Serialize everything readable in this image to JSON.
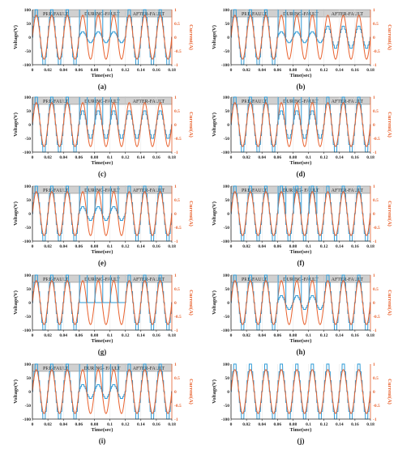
{
  "figure": {
    "colors": {
      "voltage": "#2E9AD6",
      "current": "#E8602C",
      "band_fill": "#D0D0D0",
      "axis": "#222222"
    },
    "panel_order": [
      "(a)",
      "(b)",
      "(c)",
      "(d)",
      "(e)",
      "(f)",
      "(g)",
      "(h)",
      "(i)",
      "(j)"
    ]
  },
  "chart_data": [
    {
      "id": "a",
      "panel_label": "(a)",
      "type": "line",
      "bands": [
        "PRE-FAULT",
        "DURING-FAULT",
        "AFTER-FAULT"
      ],
      "xlabel": "Time(sec)",
      "ylabel_left": "Voltage(V)",
      "ylabel_right": "Current(A)",
      "xlim": [
        0,
        0.18
      ],
      "ylim_left": [
        -100,
        100
      ],
      "ylim_right": [
        -1,
        1
      ],
      "x_ticks": [
        "0",
        "0.02",
        "0.04",
        "0.06",
        "0.08",
        "0.1",
        "0.12",
        "0.14",
        "0.16",
        "0.18"
      ],
      "y_ticks_left": [
        "100",
        "50",
        "0",
        "-50",
        "-100"
      ],
      "y_ticks_right": [
        "1",
        "0.5",
        "0",
        "-0.5",
        "-1"
      ],
      "fault_window": [
        0.06,
        0.12
      ],
      "series": [
        {
          "name": "Voltage(V)",
          "axis": "left",
          "frequency_hz": 50,
          "amplitude": 100,
          "fault_amplitude": 20,
          "waveform": "staircase"
        },
        {
          "name": "Current(A)",
          "axis": "right",
          "frequency_hz": 50,
          "amplitude": 0.8,
          "fault_amplitude": 0.8,
          "waveform": "sine"
        }
      ]
    },
    {
      "id": "b",
      "panel_label": "(b)",
      "type": "line",
      "bands": [
        "PRE-FAULT",
        "DURING-FAULT",
        "AFTER-FAULT"
      ],
      "xlabel": "Time(sec)",
      "ylabel_left": "Voltage(V)",
      "ylabel_right": "Current(A)",
      "xlim": [
        0,
        0.18
      ],
      "ylim_left": [
        -100,
        100
      ],
      "ylim_right": [
        -1,
        1
      ],
      "x_ticks": [
        "0",
        "0.02",
        "0.04",
        "0.06",
        "0.08",
        "0.1",
        "0.12",
        "0.14",
        "0.16",
        "0.18"
      ],
      "y_ticks_left": [
        "100",
        "50",
        "0",
        "-50",
        "-100"
      ],
      "y_ticks_right": [
        "1",
        "0.5",
        "0",
        "-0.5",
        "-1"
      ],
      "fault_window": [
        0.06,
        0.12
      ],
      "series": [
        {
          "name": "Voltage(V)",
          "axis": "left",
          "frequency_hz": 50,
          "amplitude": 100,
          "fault_amplitude": 20,
          "after_amplitude": 40,
          "waveform": "staircase"
        },
        {
          "name": "Current(A)",
          "axis": "right",
          "frequency_hz": 50,
          "amplitude": 0.8,
          "fault_amplitude": 0.8,
          "waveform": "sine"
        }
      ]
    },
    {
      "id": "c",
      "panel_label": "(c)",
      "type": "line",
      "bands": [
        "PRE-FAULT",
        "DURING-FAULT",
        "AFTER-FAULT"
      ],
      "xlabel": "Time(sec)",
      "ylabel_left": "Voltage(V)",
      "ylabel_right": "Current(A)",
      "xlim": [
        0,
        0.18
      ],
      "ylim_left": [
        -100,
        100
      ],
      "ylim_right": [
        -1,
        1
      ],
      "x_ticks": [
        "0",
        "0.02",
        "0.04",
        "0.06",
        "0.08",
        "0.1",
        "0.12",
        "0.14",
        "0.16",
        "0.18"
      ],
      "y_ticks_left": [
        "100",
        "50",
        "0",
        "-50",
        "-100"
      ],
      "y_ticks_right": [
        "1",
        "0.5",
        "0",
        "-0.5",
        "-1"
      ],
      "fault_window": [
        0.06,
        0.12
      ],
      "series": [
        {
          "name": "Voltage(V)",
          "axis": "left",
          "frequency_hz": 50,
          "amplitude": 100,
          "fault_amplitude": 50,
          "after_amplitude": 50,
          "waveform": "staircase"
        },
        {
          "name": "Current(A)",
          "axis": "right",
          "frequency_hz": 50,
          "amplitude": 0.8,
          "fault_amplitude": 0.8,
          "waveform": "sine"
        }
      ]
    },
    {
      "id": "d",
      "panel_label": "(d)",
      "type": "line",
      "bands": [
        "PRE-FAULT",
        "DURING-FAULT",
        "AFTER-FAULT"
      ],
      "xlabel": "Time(sec)",
      "ylabel_left": "Voltage(V)",
      "ylabel_right": "Current(A)",
      "xlim": [
        0,
        0.18
      ],
      "ylim_left": [
        -100,
        100
      ],
      "ylim_right": [
        -1,
        1
      ],
      "x_ticks": [
        "0",
        "0.02",
        "0.04",
        "0.06",
        "0.08",
        "0.1",
        "0.12",
        "0.14",
        "0.16",
        "0.18"
      ],
      "y_ticks_left": [
        "100",
        "50",
        "0",
        "-50",
        "-100"
      ],
      "y_ticks_right": [
        "1",
        "0.5",
        "0",
        "-0.5",
        "-1"
      ],
      "fault_window": [
        0.06,
        0.12
      ],
      "series": [
        {
          "name": "Voltage(V)",
          "axis": "left",
          "frequency_hz": 50,
          "amplitude": 100,
          "fault_amplitude": 50,
          "waveform": "staircase"
        },
        {
          "name": "Current(A)",
          "axis": "right",
          "frequency_hz": 50,
          "amplitude": 0.8,
          "fault_amplitude": 0.8,
          "waveform": "sine"
        }
      ]
    },
    {
      "id": "e",
      "panel_label": "(e)",
      "type": "line",
      "bands": [
        "PRE-FAULT",
        "DURING-FAULT",
        "AFTER-FAULT"
      ],
      "xlabel": "Time(sec)",
      "ylabel_left": "Voltage(V)",
      "ylabel_right": "Current(A)",
      "xlim": [
        0,
        0.18
      ],
      "ylim_left": [
        -100,
        100
      ],
      "ylim_right": [
        -1,
        1
      ],
      "x_ticks": [
        "0",
        "0.02",
        "0.04",
        "0.06",
        "0.08",
        "0.1",
        "0.12",
        "0.14",
        "0.16",
        "0.18"
      ],
      "y_ticks_left": [
        "100",
        "50",
        "0",
        "-50",
        "-100"
      ],
      "y_ticks_right": [
        "1",
        "0.5",
        "0",
        "-0.5",
        "-1"
      ],
      "fault_window": [
        0.06,
        0.12
      ],
      "series": [
        {
          "name": "Voltage(V)",
          "axis": "left",
          "frequency_hz": 50,
          "amplitude": 100,
          "fault_amplitude": 25,
          "waveform": "staircase"
        },
        {
          "name": "Current(A)",
          "axis": "right",
          "frequency_hz": 50,
          "amplitude": 0.8,
          "fault_amplitude": 0.8,
          "waveform": "sine"
        }
      ]
    },
    {
      "id": "f",
      "panel_label": "(f)",
      "type": "line",
      "bands": [
        "PRE-FAULT",
        "DURING- FAULT",
        "AFTER-FAULT"
      ],
      "xlabel": "Time(sec)",
      "ylabel_left": "Voltage(V)",
      "ylabel_right": "Current(A)",
      "xlim": [
        0,
        0.18
      ],
      "ylim_left": [
        -100,
        100
      ],
      "ylim_right": [
        -1,
        1
      ],
      "x_ticks": [
        "0",
        "0.02",
        "0.04",
        "0.06",
        "0.08",
        "0.1",
        "0.12",
        "0.14",
        "0.16",
        "0.18"
      ],
      "y_ticks_left": [
        "100",
        "50",
        "0",
        "-50",
        "-100"
      ],
      "y_ticks_right": [
        "1",
        "0.5",
        "0",
        "-0.5",
        "-1"
      ],
      "fault_window": [
        0.06,
        0.12
      ],
      "series": [
        {
          "name": "Voltage(V)",
          "axis": "left",
          "frequency_hz": 50,
          "amplitude": 100,
          "fault_amplitude": 100,
          "waveform": "staircase"
        },
        {
          "name": "Current(A)",
          "axis": "right",
          "frequency_hz": 50,
          "amplitude": 0.8,
          "fault_amplitude": 0.8,
          "waveform": "sine"
        }
      ]
    },
    {
      "id": "g",
      "panel_label": "(g)",
      "type": "line",
      "bands": [
        "PRE-FAULT",
        "DURING-FAULT",
        "AFTER-FAULT"
      ],
      "xlabel": "Time(sec)",
      "ylabel_left": "Voltage(V)",
      "ylabel_right": "Current(A)",
      "xlim": [
        0,
        0.18
      ],
      "ylim_left": [
        -100,
        100
      ],
      "ylim_right": [
        -1,
        1
      ],
      "x_ticks": [
        "0",
        "0.02",
        "0.04",
        "0.06",
        "0.08",
        "0.1",
        "0.12",
        "0.14",
        "0.16",
        "0.18"
      ],
      "y_ticks_left": [
        "100",
        "50",
        "0",
        "-50",
        "-100"
      ],
      "y_ticks_right": [
        "1",
        "0.5",
        "0",
        "-0.5",
        "-1"
      ],
      "fault_window": [
        0.06,
        0.12
      ],
      "series": [
        {
          "name": "Voltage(V)",
          "axis": "left",
          "frequency_hz": 50,
          "amplitude": 100,
          "fault_amplitude": 0,
          "waveform": "staircase"
        },
        {
          "name": "Current(A)",
          "axis": "right",
          "frequency_hz": 50,
          "amplitude": 0.8,
          "fault_amplitude": 0.8,
          "waveform": "sine"
        }
      ]
    },
    {
      "id": "h",
      "panel_label": "(h)",
      "type": "line",
      "bands": [
        "PRE-FAULT",
        "DURING-FAULT",
        "AFTER-FAULT"
      ],
      "xlabel": "Time(sec)",
      "ylabel_left": "Voltage(V)",
      "ylabel_right": "Current(A)",
      "xlim": [
        0,
        0.18
      ],
      "ylim_left": [
        -100,
        100
      ],
      "ylim_right": [
        -1,
        1
      ],
      "x_ticks": [
        "0",
        "0.02",
        "0.04",
        "0.06",
        "0.08",
        "0.1",
        "0.12",
        "0.14",
        "0.16",
        "0.18"
      ],
      "y_ticks_left": [
        "100",
        "50",
        "0",
        "-50",
        "-100"
      ],
      "y_ticks_right": [
        "1",
        "0.5",
        "0",
        "-0.5",
        "-1"
      ],
      "fault_window": [
        0.06,
        0.12
      ],
      "series": [
        {
          "name": "Voltage(V)",
          "axis": "left",
          "frequency_hz": 50,
          "amplitude": 100,
          "fault_amplitude": 25,
          "waveform": "staircase"
        },
        {
          "name": "Current(A)",
          "axis": "right",
          "frequency_hz": 50,
          "amplitude": 0.8,
          "fault_amplitude": 0.8,
          "waveform": "sine"
        }
      ]
    },
    {
      "id": "i",
      "panel_label": "(i)",
      "type": "line",
      "bands": [
        "PRE-FAULT",
        "DURING- FAULT",
        "AFTER-FAULT"
      ],
      "xlabel": "Time(sec)",
      "ylabel_left": "Voltage(V)",
      "ylabel_right": "Current(A)",
      "xlim": [
        0,
        0.18
      ],
      "ylim_left": [
        -100,
        100
      ],
      "ylim_right": [
        -1,
        1
      ],
      "x_ticks": [
        "0",
        "0.02",
        "0.04",
        "0.06",
        "0.08",
        "0.1",
        "0.12",
        "0.14",
        "0.16",
        "0.18"
      ],
      "y_ticks_left": [
        "100",
        "50",
        "0",
        "-50",
        "-100"
      ],
      "y_ticks_right": [
        "1",
        "0.5",
        "0",
        "-0.5",
        "-1"
      ],
      "fault_window": [
        0.06,
        0.12
      ],
      "series": [
        {
          "name": "Voltage(V)",
          "axis": "left",
          "frequency_hz": 50,
          "amplitude": 100,
          "fault_amplitude": 25,
          "waveform": "staircase"
        },
        {
          "name": "Current(A)",
          "axis": "right",
          "frequency_hz": 50,
          "amplitude": 0.8,
          "fault_amplitude": 0.8,
          "waveform": "sine"
        }
      ]
    },
    {
      "id": "j",
      "panel_label": "(j)",
      "type": "line",
      "bands": [],
      "xlabel": "Time(sec)",
      "ylabel_left": "Voltage(V)",
      "ylabel_right": "Current(A)",
      "xlim": [
        0,
        0.18
      ],
      "ylim_left": [
        -100,
        100
      ],
      "ylim_right": [
        -1,
        1
      ],
      "x_ticks": [
        "0",
        "0.02",
        "0.04",
        "0.06",
        "0.08",
        "0.1",
        "0.12",
        "0.14",
        "0.16",
        "0.18"
      ],
      "y_ticks_left": [
        "100",
        "50",
        "0",
        "-50",
        "-100"
      ],
      "y_ticks_right": [
        "1",
        "0.5",
        "0",
        "-0.5",
        "-1"
      ],
      "fault_window": null,
      "series": [
        {
          "name": "Voltage(V)",
          "axis": "left",
          "frequency_hz": 50,
          "amplitude": 100,
          "waveform": "staircase"
        },
        {
          "name": "Current(A)",
          "axis": "right",
          "frequency_hz": 50,
          "amplitude": 0.8,
          "waveform": "sine"
        }
      ]
    }
  ]
}
